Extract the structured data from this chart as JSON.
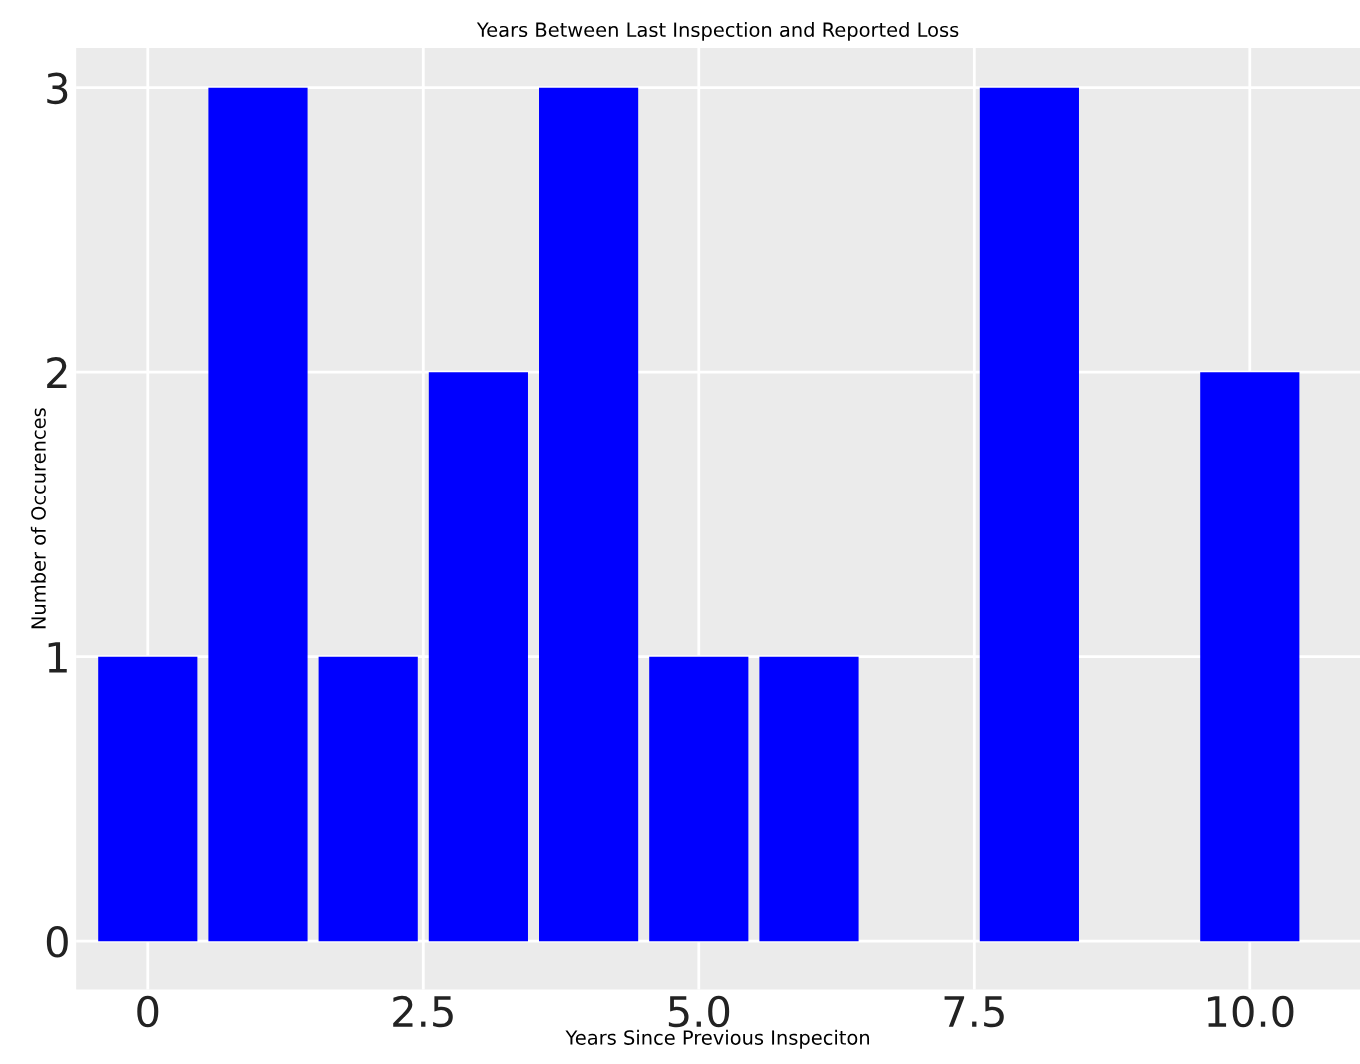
{
  "chart_data": {
    "type": "bar",
    "title": "Years Between Last Inspection and Reported Loss",
    "xlabel": "Years Since Previous Inspeciton",
    "ylabel": "Number of Occurences",
    "x": [
      0,
      1,
      2,
      3,
      4,
      5,
      6,
      7,
      8,
      9,
      10
    ],
    "values": [
      1,
      3,
      1,
      2,
      3,
      1,
      1,
      0,
      3,
      0,
      2
    ],
    "color": "#0000ff",
    "xlim": [
      -0.65,
      11.0
    ],
    "xticks": [
      0,
      {
        "value": 2.5,
        "label": "2.5"
      },
      {
        "value": 5,
        "label": "5.0"
      },
      {
        "value": 7.5,
        "label": "7.5"
      },
      {
        "value": 10,
        "label": "10.0"
      }
    ],
    "ylim": [
      -0.17,
      3.14
    ],
    "yticks": [
      0,
      1,
      2,
      3
    ],
    "grid": true
  }
}
